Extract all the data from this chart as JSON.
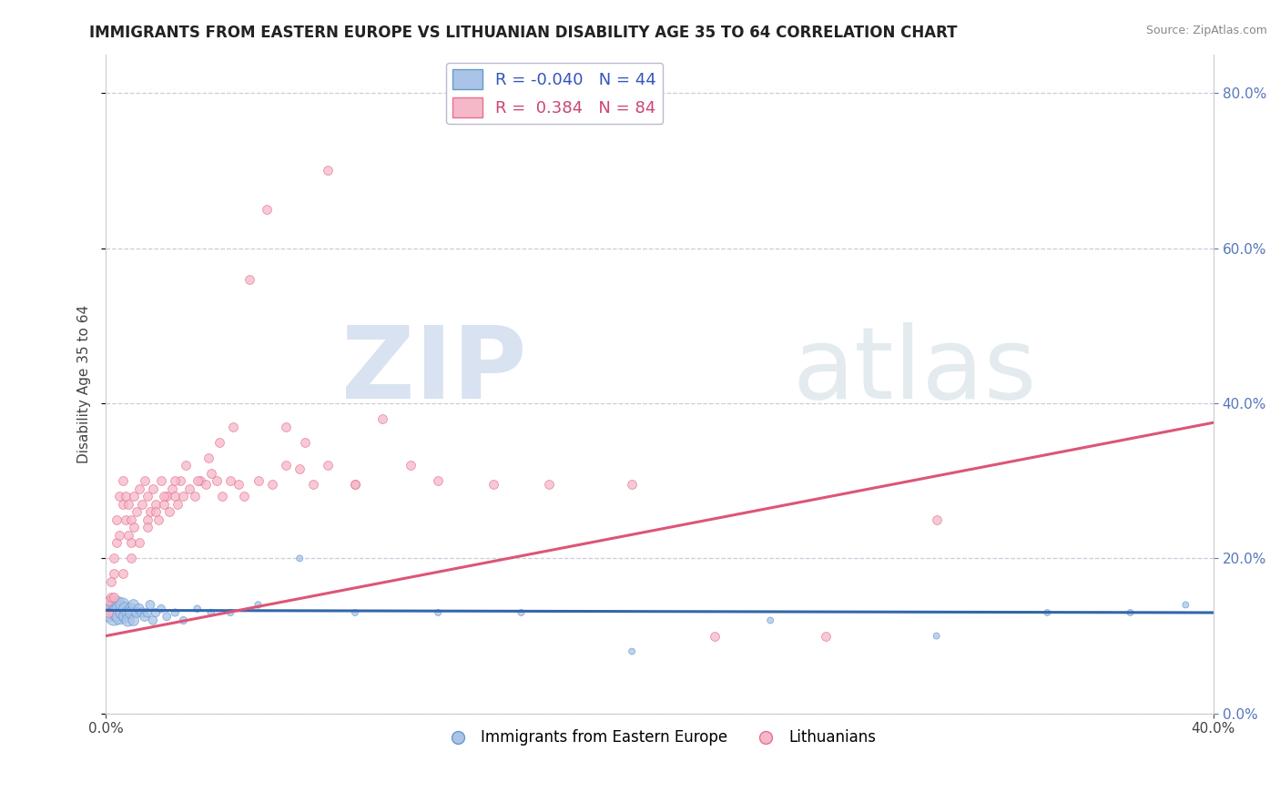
{
  "title": "IMMIGRANTS FROM EASTERN EUROPE VS LITHUANIAN DISABILITY AGE 35 TO 64 CORRELATION CHART",
  "source": "Source: ZipAtlas.com",
  "ylabel": "Disability Age 35 to 64",
  "xlim": [
    0.0,
    0.4
  ],
  "ylim": [
    0.0,
    0.85
  ],
  "blue_R": -0.04,
  "blue_N": 44,
  "pink_R": 0.384,
  "pink_N": 84,
  "blue_color": "#aac4e8",
  "pink_color": "#f5b8c8",
  "blue_edge_color": "#6699cc",
  "pink_edge_color": "#e87090",
  "blue_line_color": "#3366aa",
  "pink_line_color": "#dd5577",
  "blue_trend_y0": 0.133,
  "blue_trend_y1": 0.13,
  "pink_trend_y0": 0.1,
  "pink_trend_y1": 0.375,
  "blue_scatter_x": [
    0.001,
    0.002,
    0.003,
    0.003,
    0.004,
    0.004,
    0.005,
    0.005,
    0.006,
    0.006,
    0.007,
    0.007,
    0.008,
    0.008,
    0.009,
    0.009,
    0.01,
    0.01,
    0.011,
    0.012,
    0.013,
    0.014,
    0.015,
    0.016,
    0.017,
    0.018,
    0.02,
    0.022,
    0.025,
    0.028,
    0.033,
    0.038,
    0.045,
    0.055,
    0.07,
    0.09,
    0.12,
    0.15,
    0.19,
    0.24,
    0.3,
    0.34,
    0.37,
    0.39
  ],
  "blue_scatter_y": [
    0.13,
    0.14,
    0.135,
    0.125,
    0.14,
    0.13,
    0.135,
    0.125,
    0.13,
    0.14,
    0.135,
    0.125,
    0.13,
    0.12,
    0.135,
    0.13,
    0.14,
    0.12,
    0.13,
    0.135,
    0.13,
    0.125,
    0.13,
    0.14,
    0.12,
    0.13,
    0.135,
    0.125,
    0.13,
    0.12,
    0.135,
    0.13,
    0.13,
    0.14,
    0.2,
    0.13,
    0.13,
    0.13,
    0.08,
    0.12,
    0.1,
    0.13,
    0.13,
    0.14
  ],
  "blue_scatter_size": [
    200,
    200,
    200,
    200,
    180,
    180,
    150,
    150,
    120,
    120,
    100,
    100,
    90,
    90,
    80,
    80,
    70,
    70,
    60,
    60,
    55,
    55,
    50,
    50,
    45,
    45,
    40,
    40,
    35,
    35,
    30,
    30,
    28,
    28,
    25,
    25,
    25,
    25,
    25,
    25,
    25,
    25,
    25,
    25
  ],
  "pink_scatter_x": [
    0.001,
    0.001,
    0.002,
    0.002,
    0.003,
    0.003,
    0.004,
    0.004,
    0.005,
    0.005,
    0.006,
    0.006,
    0.007,
    0.007,
    0.008,
    0.008,
    0.009,
    0.009,
    0.01,
    0.01,
    0.011,
    0.012,
    0.013,
    0.014,
    0.015,
    0.015,
    0.016,
    0.017,
    0.018,
    0.019,
    0.02,
    0.021,
    0.022,
    0.023,
    0.024,
    0.025,
    0.026,
    0.027,
    0.028,
    0.03,
    0.032,
    0.034,
    0.036,
    0.038,
    0.04,
    0.042,
    0.045,
    0.048,
    0.05,
    0.055,
    0.06,
    0.065,
    0.07,
    0.075,
    0.08,
    0.09,
    0.1,
    0.11,
    0.12,
    0.14,
    0.16,
    0.19,
    0.22,
    0.26,
    0.3,
    0.003,
    0.006,
    0.009,
    0.012,
    0.015,
    0.018,
    0.021,
    0.025,
    0.029,
    0.033,
    0.037,
    0.041,
    0.046,
    0.052,
    0.058,
    0.065,
    0.072,
    0.08,
    0.09
  ],
  "pink_scatter_y": [
    0.13,
    0.145,
    0.15,
    0.17,
    0.18,
    0.2,
    0.22,
    0.25,
    0.28,
    0.23,
    0.27,
    0.3,
    0.25,
    0.28,
    0.23,
    0.27,
    0.25,
    0.22,
    0.28,
    0.24,
    0.26,
    0.29,
    0.27,
    0.3,
    0.25,
    0.28,
    0.26,
    0.29,
    0.27,
    0.25,
    0.3,
    0.27,
    0.28,
    0.26,
    0.29,
    0.28,
    0.27,
    0.3,
    0.28,
    0.29,
    0.28,
    0.3,
    0.295,
    0.31,
    0.3,
    0.28,
    0.3,
    0.295,
    0.28,
    0.3,
    0.295,
    0.32,
    0.315,
    0.295,
    0.32,
    0.295,
    0.38,
    0.32,
    0.3,
    0.295,
    0.295,
    0.295,
    0.1,
    0.1,
    0.25,
    0.15,
    0.18,
    0.2,
    0.22,
    0.24,
    0.26,
    0.28,
    0.3,
    0.32,
    0.3,
    0.33,
    0.35,
    0.37,
    0.56,
    0.65,
    0.37,
    0.35,
    0.7,
    0.295
  ],
  "watermark_zip": "ZIP",
  "watermark_atlas": "atlas",
  "bg_color": "#ffffff",
  "grid_color": "#ccccdd",
  "legend_label1": "Immigrants from Eastern Europe",
  "legend_label2": "Lithuanians"
}
